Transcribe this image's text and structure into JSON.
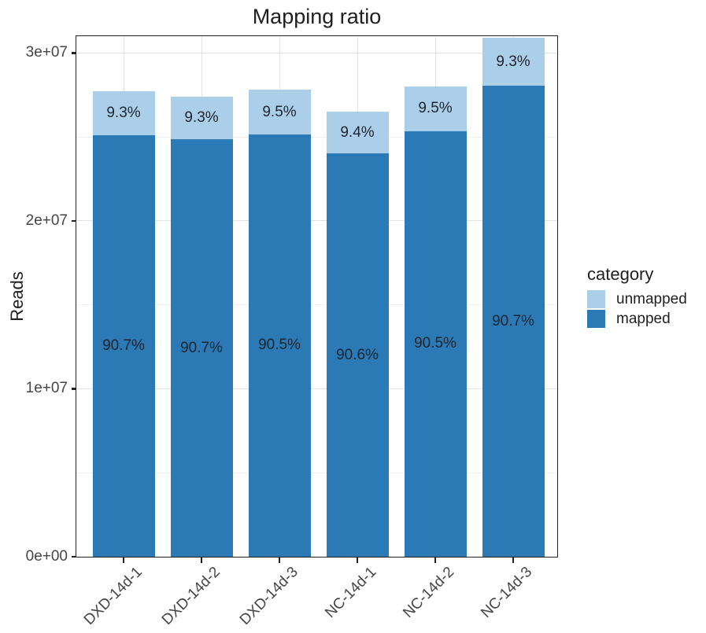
{
  "chart_data": {
    "type": "bar",
    "stacked": true,
    "title": "Mapping ratio",
    "xlabel": "",
    "ylabel": "Reads",
    "categories": [
      "DXD-14d-1",
      "DXD-14d-2",
      "DXD-14d-3",
      "NC-14d-1",
      "NC-14d-2",
      "NC-14d-3"
    ],
    "series": [
      {
        "name": "mapped",
        "color": "#2b7ab5",
        "values": [
          25120000,
          24850000,
          25160000,
          24010000,
          25340000,
          28030000
        ],
        "percent_labels": [
          "90.7%",
          "90.7%",
          "90.5%",
          "90.6%",
          "90.5%",
          "90.7%"
        ]
      },
      {
        "name": "unmapped",
        "color": "#accfe9",
        "values": [
          2580000,
          2550000,
          2640000,
          2490000,
          2660000,
          2870000
        ],
        "percent_labels": [
          "9.3%",
          "9.3%",
          "9.5%",
          "9.4%",
          "9.5%",
          "9.3%"
        ]
      }
    ],
    "stack_order_bottom_to_top": [
      "mapped",
      "unmapped"
    ],
    "y_ticks": [
      {
        "value": 0,
        "label": "0e+00"
      },
      {
        "value": 10000000,
        "label": "1e+07"
      },
      {
        "value": 20000000,
        "label": "2e+07"
      },
      {
        "value": 30000000,
        "label": "3e+07"
      }
    ],
    "y_minor_gridlines": [
      5000000,
      15000000,
      25000000
    ],
    "ylim": [
      0,
      31000000
    ],
    "grid": true,
    "legend": {
      "title": "category",
      "position": "right",
      "entries": [
        "unmapped",
        "mapped"
      ]
    }
  }
}
